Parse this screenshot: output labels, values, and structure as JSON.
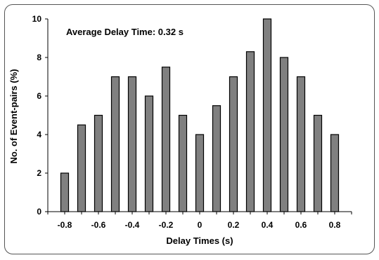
{
  "chart_data": {
    "type": "bar",
    "xlabel": "Delay Times (s)",
    "ylabel": "No. of Event-pairs (%)",
    "annotation": "Average Delay Time: 0.32 s",
    "ylim": [
      0,
      10
    ],
    "yticks": [
      0,
      2,
      4,
      6,
      8,
      10
    ],
    "xticks": [
      "-0.8",
      "-0.6",
      "-0.4",
      "-0.2",
      "0",
      "0.2",
      "0.4",
      "0.6",
      "0.8"
    ],
    "x": [
      -0.8,
      -0.7,
      -0.6,
      -0.5,
      -0.4,
      -0.3,
      -0.2,
      -0.1,
      0.0,
      0.1,
      0.2,
      0.3,
      0.4,
      0.5,
      0.6,
      0.7,
      0.8
    ],
    "values": [
      2,
      4.5,
      5,
      7,
      7,
      6,
      7.5,
      5,
      4,
      5.5,
      7,
      8.3,
      10,
      8,
      7,
      5,
      4
    ],
    "bar_color": "#808080",
    "grid": false
  }
}
